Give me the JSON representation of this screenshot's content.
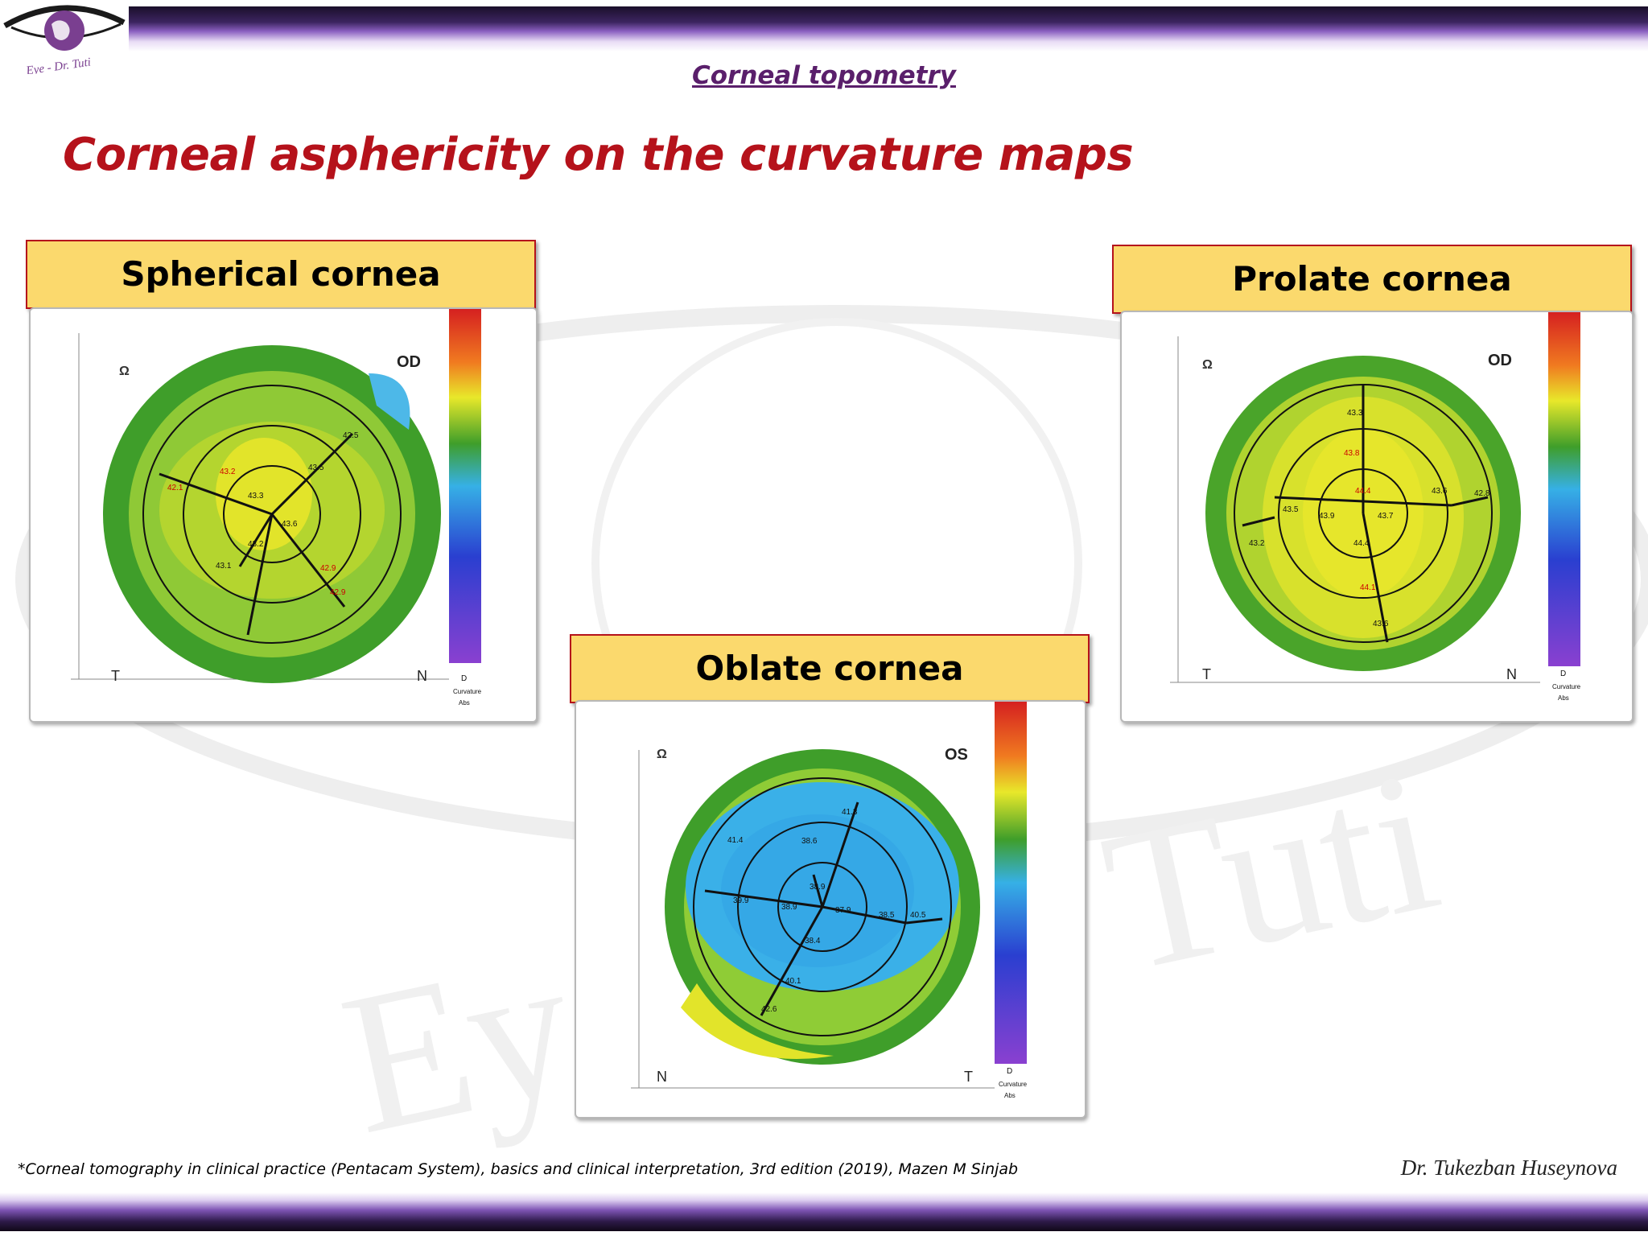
{
  "header": {
    "logo_text": "Eye - Dr. Tuti",
    "title": "Corneal topometry"
  },
  "slide": {
    "title": "Corneal asphericity on the curvature maps"
  },
  "watermark": {
    "text": "Eye - Dr. Tuti"
  },
  "maps": [
    {
      "label": "Spherical cornea",
      "eye": "OD",
      "left_letter": "T",
      "right_letter": "N",
      "center_colors": [
        "#b4d52f",
        "#e2e42a",
        "#9ccc33",
        "#3f9e2a"
      ],
      "readings": [
        "42.5",
        "43.5",
        "43.3",
        "43.6",
        "42.1",
        "43.2",
        "43.2",
        "43.1",
        "42.9",
        "42.9"
      ]
    },
    {
      "label": "Prolate cornea",
      "eye": "OD",
      "left_letter": "T",
      "right_letter": "N",
      "center_colors": [
        "#e6e62b",
        "#d8e12c",
        "#b0d32f",
        "#4aa42a"
      ],
      "readings": [
        "43.3",
        "43.8",
        "44.4",
        "43.6",
        "42.8",
        "43.5",
        "43.9",
        "43.7",
        "43.2",
        "44.4",
        "44.1",
        "43.6"
      ]
    },
    {
      "label": "Oblate cornea",
      "eye": "OS",
      "left_letter": "N",
      "right_letter": "T",
      "center_colors": [
        "#35a8e6",
        "#3ab0e8",
        "#8fcc36",
        "#3f9e2a"
      ],
      "readings": [
        "41.3",
        "41.4",
        "38.6",
        "38.9",
        "39.9",
        "38.9",
        "37.9",
        "38.5",
        "40.5",
        "38.4",
        "40.1",
        "42.6"
      ]
    }
  ],
  "colorbar": {
    "unit_label": "D",
    "caption": "Curvature",
    "caption2": "Abs"
  },
  "footer": {
    "citation": "*Corneal tomography in clinical practice (Pentacam System), basics and clinical interpretation, 3rd edition (2019), Mazen M Sinjab",
    "author": "Dr. Tukezban Huseynova"
  }
}
